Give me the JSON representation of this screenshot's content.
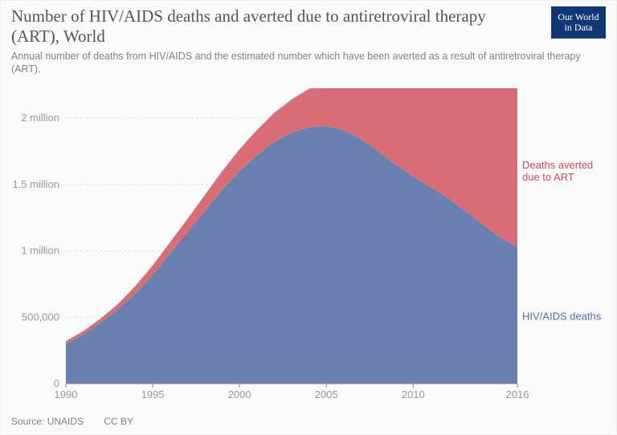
{
  "header": {
    "title": "Number of HIV/AIDS deaths and averted due to antiretroviral therapy (ART), World",
    "subtitle": "Annual number of deaths from HIV/AIDS and the estimated number which have been averted as a result of antiretroviral therapy (ART)."
  },
  "logo": {
    "line1": "Our World",
    "line2": "in Data",
    "bg": "#0f3875",
    "fg": "#ffffff"
  },
  "footer": {
    "source": "Source: UNAIDS",
    "license": "CC BY"
  },
  "chart": {
    "type": "stacked-area",
    "background": "#fafafa",
    "plot_bg": "#fafafa",
    "x": {
      "min": 1990,
      "max": 2016,
      "ticks": [
        1990,
        1995,
        2000,
        2005,
        2010,
        2016
      ],
      "labels": [
        "1990",
        "1995",
        "2000",
        "2005",
        "2010",
        "2016"
      ],
      "fontsize": 13,
      "color": "#999999"
    },
    "y": {
      "min": 0,
      "max": 2200000,
      "ticks": [
        0,
        500000,
        1000000,
        1500000,
        2000000
      ],
      "labels": [
        "0",
        "500,000",
        "1 million",
        "1.5 million",
        "2 million"
      ],
      "grid": true,
      "grid_color": "#dddddd",
      "grid_dash": "3 3",
      "fontsize": 13,
      "color": "#999999"
    },
    "series": [
      {
        "id": "deaths",
        "label": "HIV/AIDS deaths",
        "color": "#6a80b0",
        "label_color": "#4f6ca8",
        "years": [
          1990,
          1991,
          1992,
          1993,
          1994,
          1995,
          1996,
          1997,
          1998,
          1999,
          2000,
          2001,
          2002,
          2003,
          2004,
          2005,
          2006,
          2007,
          2008,
          2009,
          2010,
          2011,
          2012,
          2013,
          2014,
          2015,
          2016
        ],
        "values": [
          300000,
          370000,
          460000,
          560000,
          680000,
          820000,
          980000,
          1140000,
          1300000,
          1460000,
          1600000,
          1720000,
          1820000,
          1890000,
          1930000,
          1940000,
          1910000,
          1840000,
          1750000,
          1650000,
          1560000,
          1480000,
          1400000,
          1300000,
          1200000,
          1100000,
          1030000
        ]
      },
      {
        "id": "averted",
        "label": "Deaths averted due to ART",
        "color": "#d96d75",
        "label_color": "#d24a57",
        "years": [
          1990,
          1991,
          1992,
          1993,
          1994,
          1995,
          1996,
          1997,
          1998,
          1999,
          2000,
          2001,
          2002,
          2003,
          2004,
          2005,
          2006,
          2007,
          2008,
          2009,
          2010,
          2011,
          2012,
          2013,
          2014,
          2015,
          2016
        ],
        "values": [
          20000,
          25000,
          30000,
          40000,
          55000,
          70000,
          85000,
          100000,
          120000,
          140000,
          165000,
          190000,
          220000,
          250000,
          290000,
          330000,
          390000,
          470000,
          540000,
          600000,
          680000,
          780000,
          900000,
          1020000,
          1120000,
          1180000,
          1220000
        ]
      }
    ],
    "series_label_positions": {
      "deaths": {
        "x": 2016.5,
        "y": 480000
      },
      "averted": {
        "x": 2016.5,
        "y": 1620000
      }
    },
    "label_fontsize": 13,
    "axis_line_color": "#888888"
  }
}
